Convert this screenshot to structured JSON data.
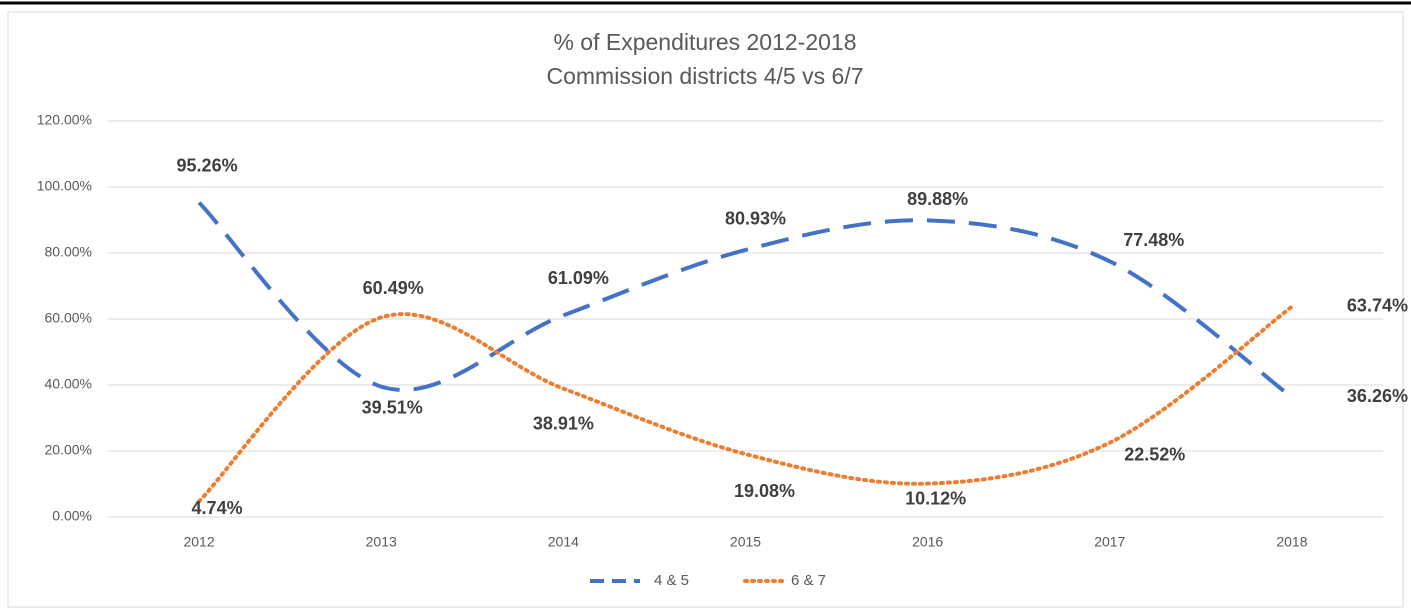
{
  "chart_data": {
    "type": "line",
    "title": "% of Expenditures 2012-2018",
    "subtitle": "Commission districts 4/5 vs 6/7",
    "categories": [
      "2012",
      "2013",
      "2014",
      "2015",
      "2016",
      "2017",
      "2018"
    ],
    "series": [
      {
        "name": "4 & 5",
        "color": "#4472c4",
        "style": "dashed",
        "values": [
          95.26,
          39.51,
          61.09,
          80.93,
          89.88,
          77.48,
          36.26
        ],
        "value_labels": [
          "95.26%",
          "39.51%",
          "61.09%",
          "80.93%",
          "89.88%",
          "77.48%",
          "36.26%"
        ]
      },
      {
        "name": "6 & 7",
        "color": "#ed7d31",
        "style": "dotted",
        "values": [
          4.74,
          60.49,
          38.91,
          19.08,
          10.12,
          22.52,
          63.74
        ],
        "value_labels": [
          "4.74%",
          "60.49%",
          "38.91%",
          "19.08%",
          "10.12%",
          "22.52%",
          "63.74%"
        ]
      }
    ],
    "ylim": [
      0,
      120
    ],
    "yticks": [
      {
        "value": 0,
        "label": "0.00%"
      },
      {
        "value": 20,
        "label": "20.00%"
      },
      {
        "value": 40,
        "label": "40.00%"
      },
      {
        "value": 60,
        "label": "60.00%"
      },
      {
        "value": 80,
        "label": "80.00%"
      },
      {
        "value": 100,
        "label": "100.00%"
      },
      {
        "value": 120,
        "label": "120.00%"
      }
    ],
    "grid": true,
    "smooth": true,
    "legend": "bottom"
  }
}
